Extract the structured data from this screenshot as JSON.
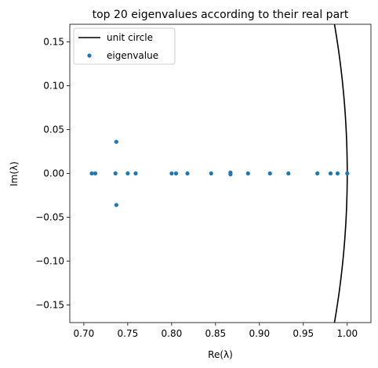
{
  "chart_data": {
    "type": "scatter",
    "title": "top 20 eigenvalues according to their real part",
    "xlabel": "Re(λ)",
    "ylabel": "Im(λ)",
    "xlim": [
      0.684,
      1.027
    ],
    "ylim": [
      -0.17,
      0.17
    ],
    "x_ticks": [
      "0.70",
      "0.75",
      "0.80",
      "0.85",
      "0.90",
      "0.95",
      "1.00"
    ],
    "y_ticks": [
      "0.15",
      "0.10",
      "0.05",
      "0.00",
      "−0.05",
      "−0.10",
      "−0.15"
    ],
    "grid": false,
    "legend_position": "top-left",
    "series": [
      {
        "name": "unit circle",
        "kind": "line",
        "color": "#000000",
        "description": "circle of radius 1 centered at origin"
      },
      {
        "name": "eigenvalue",
        "kind": "scatter",
        "color": "#1f77b4",
        "points": [
          {
            "x": 0.709,
            "y": 0.0
          },
          {
            "x": 0.713,
            "y": 0.0
          },
          {
            "x": 0.736,
            "y": 0.0
          },
          {
            "x": 0.737,
            "y": 0.036
          },
          {
            "x": 0.737,
            "y": -0.036
          },
          {
            "x": 0.75,
            "y": 0.0
          },
          {
            "x": 0.759,
            "y": 0.0
          },
          {
            "x": 0.8,
            "y": 0.0
          },
          {
            "x": 0.805,
            "y": 0.0
          },
          {
            "x": 0.818,
            "y": 0.0
          },
          {
            "x": 0.845,
            "y": 0.0
          },
          {
            "x": 0.867,
            "y": 0.001
          },
          {
            "x": 0.867,
            "y": -0.001
          },
          {
            "x": 0.887,
            "y": 0.0
          },
          {
            "x": 0.912,
            "y": 0.0
          },
          {
            "x": 0.933,
            "y": 0.0
          },
          {
            "x": 0.966,
            "y": 0.0
          },
          {
            "x": 0.981,
            "y": 0.0
          },
          {
            "x": 0.989,
            "y": 0.0
          },
          {
            "x": 1.0,
            "y": 0.0
          }
        ]
      }
    ]
  }
}
